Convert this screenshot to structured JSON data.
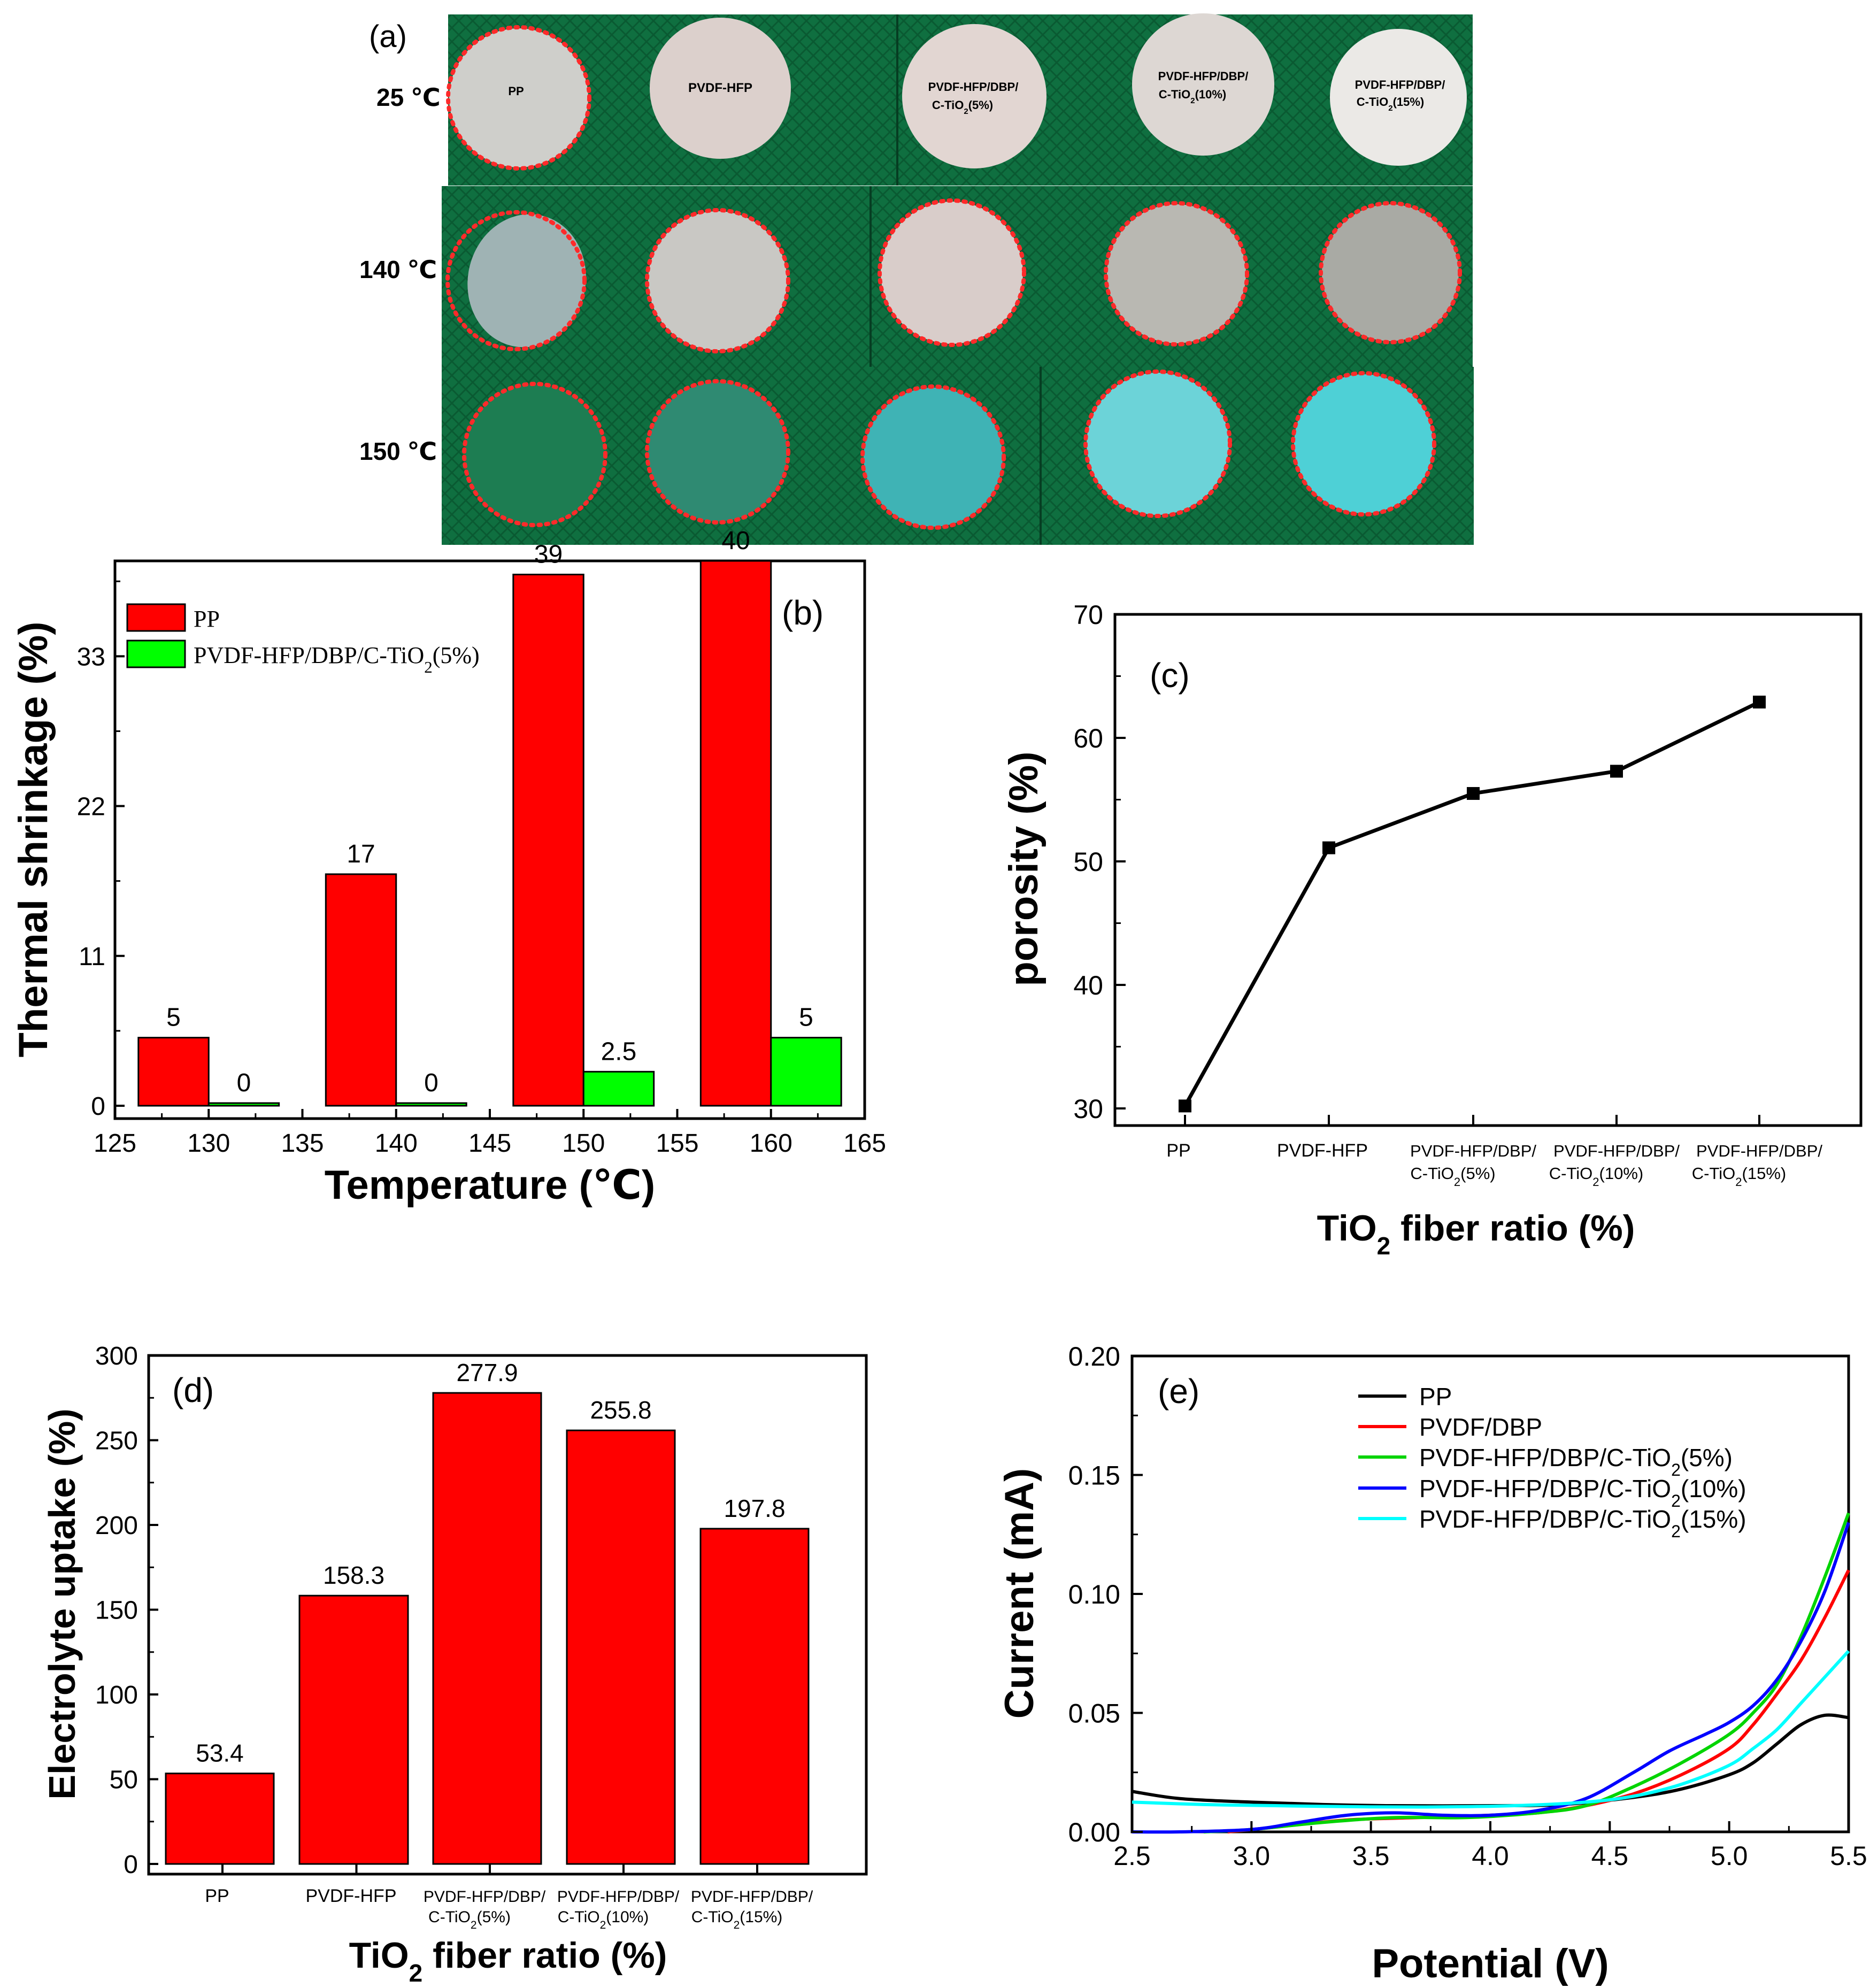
{
  "panel_a": {
    "label": "(a)",
    "row_labels": [
      "25 ℃",
      "140 ℃",
      "150 ℃"
    ],
    "samples": [
      {
        "line1": "PP",
        "line2": ""
      },
      {
        "line1": "PVDF-HFP",
        "line2": ""
      },
      {
        "line1": "PVDF-HFP/DBP/",
        "line2": "C-TiO₂(5%)"
      },
      {
        "line1": "PVDF-HFP/DBP/",
        "line2": "C-TiO₂(10%)"
      },
      {
        "line1": "PVDF-HFP/DBP/",
        "line2": "C-TiO₂(15%)"
      }
    ],
    "colors": {
      "board": "#0d6b3d",
      "board_dark": "#0a5a32",
      "outline": "#ff2a2a"
    }
  },
  "chart_data": [
    {
      "id": "b",
      "type": "bar",
      "panel_label": "(b)",
      "title": "",
      "xlabel": "Temperature (℃)",
      "ylabel": "Thermal shrinkage (%)",
      "xlim": [
        125,
        165
      ],
      "ylim": [
        0,
        40
      ],
      "xticks": [
        125,
        130,
        135,
        140,
        145,
        150,
        155,
        160,
        165
      ],
      "yticks": [
        0,
        11,
        22,
        33
      ],
      "x": [
        130,
        140,
        150,
        160
      ],
      "series": [
        {
          "name": "PP",
          "color": "#ff0000",
          "values": [
            5,
            17,
            39,
            40
          ],
          "labels": [
            "5",
            "17",
            "39",
            "40"
          ]
        },
        {
          "name": "PVDF-HFP/DBP/C-TiO₂(5%)",
          "color": "#00ff00",
          "values": [
            0,
            0,
            2.5,
            5
          ],
          "labels": [
            "0",
            "0",
            "2.5",
            "5"
          ]
        }
      ],
      "legend": "top-left"
    },
    {
      "id": "c",
      "type": "line",
      "panel_label": "(c)",
      "title": "",
      "xlabel": "TiO₂ fiber ratio (%)",
      "ylabel": "porosity (%)",
      "ylim": [
        27,
        70
      ],
      "yticks": [
        30,
        40,
        50,
        60,
        70
      ],
      "categories": [
        {
          "line1": "PP",
          "line2": ""
        },
        {
          "line1": "PVDF-HFP",
          "line2": ""
        },
        {
          "line1": "PVDF-HFP/DBP/",
          "line2": "C-TiO₂(5%)"
        },
        {
          "line1": "PVDF-HFP/DBP/",
          "line2": "C-TiO₂(10%)"
        },
        {
          "line1": "PVDF-HFP/DBP/",
          "line2": "C-TiO₂(15%)"
        }
      ],
      "values": [
        30.2,
        51.1,
        55.5,
        57.3,
        62.9
      ],
      "color": "#000000"
    },
    {
      "id": "d",
      "type": "bar",
      "panel_label": "(d)",
      "title": "",
      "xlabel": "TiO₂ fiber ratio (%)",
      "ylabel": "Electrolyte uptake (%)",
      "ylim": [
        0,
        300
      ],
      "yticks": [
        0,
        50,
        100,
        150,
        200,
        250,
        300
      ],
      "categories": [
        {
          "line1": "PP",
          "line2": ""
        },
        {
          "line1": "PVDF-HFP",
          "line2": ""
        },
        {
          "line1": "PVDF-HFP/DBP/",
          "line2": "C-TiO₂(5%)"
        },
        {
          "line1": "PVDF-HFP/DBP/",
          "line2": "C-TiO₂(10%)"
        },
        {
          "line1": "PVDF-HFP/DBP/",
          "line2": "C-TiO₂(15%)"
        }
      ],
      "values": [
        53.4,
        158.3,
        277.9,
        255.8,
        197.8
      ],
      "labels": [
        "53.4",
        "158.3",
        "277.9",
        "255.8",
        "197.8"
      ],
      "color": "#ff0000"
    },
    {
      "id": "e",
      "type": "line",
      "panel_label": "(e)",
      "title": "",
      "xlabel": "Potential (V)",
      "ylabel": "Current (mA)",
      "xlim": [
        2.5,
        5.5
      ],
      "ylim": [
        0,
        0.2
      ],
      "xticks": [
        "2.5",
        "3.0",
        "3.5",
        "4.0",
        "4.5",
        "5.0",
        "5.5"
      ],
      "yticks": [
        "0.00",
        "0.05",
        "0.10",
        "0.15",
        "0.20"
      ],
      "legend": "top-left",
      "series": [
        {
          "name": "PP",
          "color": "#000000",
          "x": [
            2.5,
            2.7,
            3.0,
            3.3,
            3.6,
            4.0,
            4.3,
            4.6,
            4.8,
            5.0,
            5.1,
            5.2,
            5.3,
            5.4,
            5.5
          ],
          "y": [
            0.017,
            0.014,
            0.0125,
            0.0115,
            0.011,
            0.011,
            0.0115,
            0.0145,
            0.018,
            0.024,
            0.029,
            0.037,
            0.045,
            0.049,
            0.048
          ]
        },
        {
          "name": "PVDF/DBP",
          "color": "#ff0000",
          "x": [
            2.9,
            3.1,
            3.4,
            3.7,
            4.0,
            4.2,
            4.4,
            4.6,
            4.8,
            5.0,
            5.1,
            5.2,
            5.3,
            5.4,
            5.5
          ],
          "y": [
            0,
            0.002,
            0.005,
            0.006,
            0.007,
            0.008,
            0.011,
            0.016,
            0.024,
            0.035,
            0.045,
            0.058,
            0.072,
            0.09,
            0.11
          ]
        },
        {
          "name": "PVDF-HFP/DBP/C-TiO₂(5%)",
          "color": "#00d400",
          "x": [
            2.8,
            3.0,
            3.3,
            3.6,
            3.9,
            4.2,
            4.4,
            4.6,
            4.8,
            5.0,
            5.1,
            5.2,
            5.3,
            5.4,
            5.5
          ],
          "y": [
            0,
            0.001,
            0.004,
            0.006,
            0.006,
            0.008,
            0.011,
            0.019,
            0.029,
            0.041,
            0.05,
            0.062,
            0.082,
            0.107,
            0.134
          ]
        },
        {
          "name": "PVDF-HFP/DBP/C-TiO₂(10%)",
          "color": "#0000ff",
          "x": [
            2.5,
            2.7,
            3.0,
            3.2,
            3.4,
            3.6,
            3.8,
            4.0,
            4.2,
            4.4,
            4.6,
            4.75,
            4.9,
            5.0,
            5.1,
            5.2,
            5.3,
            5.4,
            5.5
          ],
          "y": [
            0,
            0,
            0.001,
            0.004,
            0.007,
            0.008,
            0.007,
            0.007,
            0.009,
            0.014,
            0.025,
            0.034,
            0.041,
            0.046,
            0.053,
            0.064,
            0.08,
            0.101,
            0.13
          ]
        },
        {
          "name": "PVDF-HFP/DBP/C-TiO₂(15%)",
          "color": "#00ffff",
          "x": [
            2.5,
            2.8,
            3.1,
            3.5,
            3.8,
            4.1,
            4.4,
            4.6,
            4.8,
            5.0,
            5.1,
            5.2,
            5.3,
            5.4,
            5.5
          ],
          "y": [
            0.0125,
            0.0115,
            0.011,
            0.0105,
            0.0105,
            0.011,
            0.0125,
            0.015,
            0.02,
            0.028,
            0.035,
            0.043,
            0.054,
            0.065,
            0.076
          ]
        }
      ]
    }
  ]
}
